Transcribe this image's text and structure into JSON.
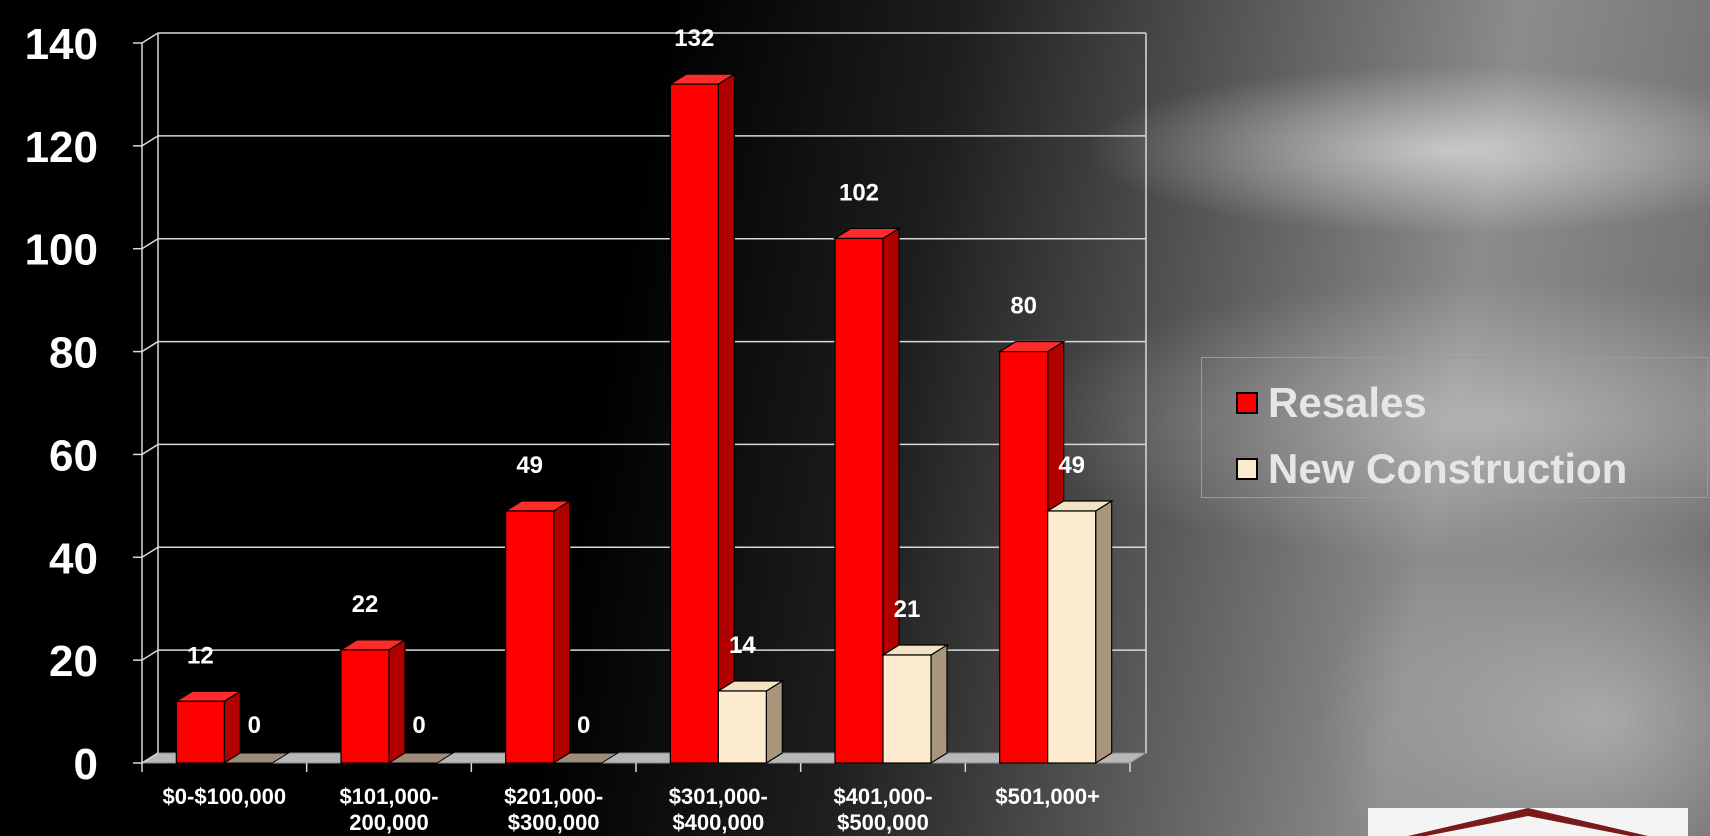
{
  "chart_data": {
    "type": "bar",
    "categories": [
      "$0-$100,000",
      "$101,000-\n200,000",
      "$201,000-\n$300,000",
      "$301,000-\n$400,000",
      "$401,000-\n$500,000",
      "$501,000+"
    ],
    "series": [
      {
        "name": "Resales",
        "values": [
          12,
          22,
          49,
          132,
          102,
          80
        ],
        "color": "#ff0000"
      },
      {
        "name": "New Construction",
        "values": [
          0,
          0,
          0,
          14,
          21,
          49
        ],
        "color": "#fdebd0"
      }
    ],
    "ylim": [
      0,
      140
    ],
    "yticks": [
      0,
      20,
      40,
      60,
      80,
      100,
      120,
      140
    ],
    "grid": true,
    "legend_position": "right",
    "style": "3d-column"
  }
}
